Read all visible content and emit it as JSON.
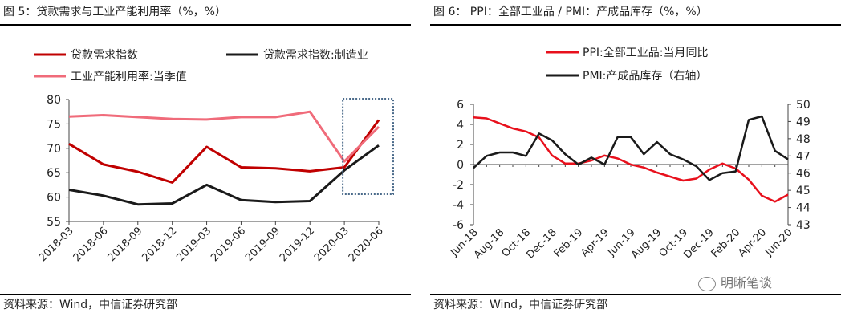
{
  "figure5": {
    "title": "图 5：贷款需求与工业产能利用率（%，%）",
    "source": "资料来源：Wind，中信证券研究部"
  },
  "figure6": {
    "title": "图 6： PPI：全部工业品 / PMI：产成品库存（%，%）",
    "source": "资料来源：Wind，中信证券研究部"
  },
  "watermark": {
    "text": "明晰笔谈",
    "icon": "wechat-icon"
  },
  "chart_data": [
    {
      "type": "line",
      "title": "",
      "xlabel": "",
      "ylabel": "",
      "ylim": [
        55,
        80
      ],
      "yticks": [
        "80",
        "75",
        "70",
        "65",
        "60",
        "55"
      ],
      "x": [
        "2018-03",
        "2018-06",
        "2018-09",
        "2018-12",
        "2019-03",
        "2019-06",
        "2019-09",
        "2019-12",
        "2020-03",
        "2020-06"
      ],
      "grid": false,
      "legend": "top",
      "highlight": {
        "from": "2020-03",
        "to": "2020-06",
        "style": "dotted-box",
        "color": "#4a6a8a"
      },
      "series": [
        {
          "name": "贷款需求指数",
          "color": "#c00000",
          "values": [
            70.9,
            66.7,
            65.2,
            63.0,
            70.3,
            66.1,
            65.9,
            65.3,
            66.1,
            75.8
          ]
        },
        {
          "name": "贷款需求指数:制造业",
          "color": "#1a1a1a",
          "values": [
            61.5,
            60.3,
            58.5,
            58.7,
            62.5,
            59.4,
            59.0,
            59.2,
            65.5,
            70.6
          ]
        },
        {
          "name": "工业产能利用率:当季值",
          "color": "#f06b7a",
          "values": [
            76.5,
            76.8,
            76.4,
            76.0,
            75.9,
            76.4,
            76.4,
            77.5,
            67.3,
            74.4
          ]
        }
      ]
    },
    {
      "type": "line",
      "title": "",
      "xlabel": "",
      "ylabel": "",
      "ylim": [
        -6,
        6
      ],
      "yticks": [
        "6",
        "4",
        "2",
        "0",
        "-2",
        "-4",
        "-6"
      ],
      "y2lim": [
        43,
        50
      ],
      "y2ticks": [
        "50",
        "49",
        "48",
        "47",
        "46",
        "45",
        "44",
        "43"
      ],
      "x": [
        "Jun-18",
        "Jul-18",
        "Aug-18",
        "Sep-18",
        "Oct-18",
        "Nov-18",
        "Dec-18",
        "Jan-19",
        "Feb-19",
        "Mar-19",
        "Apr-19",
        "May-19",
        "Jun-19",
        "Jul-19",
        "Aug-19",
        "Sep-19",
        "Oct-19",
        "Nov-19",
        "Dec-19",
        "Jan-20",
        "Feb-20",
        "Mar-20",
        "Apr-20",
        "May-20",
        "Jun-20"
      ],
      "xticks": [
        "Jun-18",
        "Aug-18",
        "Oct-18",
        "Dec-18",
        "Feb-19",
        "Apr-19",
        "Jun-19",
        "Aug-19",
        "Oct-19",
        "Dec-19",
        "Feb-20",
        "Apr-20",
        "Jun-20"
      ],
      "grid": false,
      "legend": "top",
      "series": [
        {
          "name": "PPI:全部工业品:当月同比",
          "color": "#e8101c",
          "axis": "left",
          "values": [
            4.7,
            4.6,
            4.1,
            3.6,
            3.3,
            2.7,
            0.9,
            0.1,
            0.1,
            0.4,
            0.9,
            0.6,
            0.0,
            -0.3,
            -0.8,
            -1.2,
            -1.6,
            -1.4,
            -0.5,
            0.1,
            -0.4,
            -1.5,
            -3.1,
            -3.7,
            -3.0
          ]
        },
        {
          "name": "PMI:产成品库存（右轴）",
          "color": "#1a1a1a",
          "axis": "right",
          "values": [
            46.3,
            47.0,
            47.2,
            47.2,
            47.0,
            48.3,
            47.9,
            47.1,
            46.5,
            46.9,
            46.5,
            48.1,
            48.1,
            47.1,
            47.8,
            47.1,
            46.8,
            46.4,
            45.6,
            46.0,
            46.1,
            49.1,
            49.3,
            47.3,
            46.8
          ]
        }
      ]
    }
  ]
}
